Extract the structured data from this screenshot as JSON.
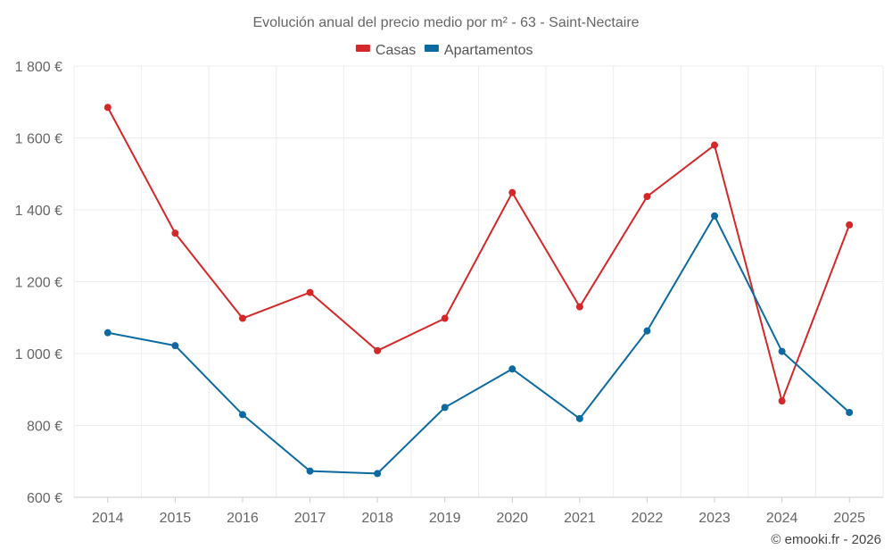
{
  "chart_data": {
    "type": "line",
    "title": "Evolución anual del precio medio por m² - 63 - Saint-Nectaire",
    "categories": [
      "2014",
      "2015",
      "2016",
      "2017",
      "2018",
      "2019",
      "2020",
      "2021",
      "2022",
      "2023",
      "2024",
      "2025"
    ],
    "series": [
      {
        "name": "Casas",
        "color": "#d62728",
        "values": [
          1685,
          1335,
          1098,
          1170,
          1008,
          1098,
          1448,
          1130,
          1437,
          1580,
          868,
          1358
        ]
      },
      {
        "name": "Apartamentos",
        "color": "#0b6a9f",
        "values": [
          1058,
          1022,
          830,
          673,
          666,
          850,
          957,
          819,
          1063,
          1383,
          1006,
          836
        ]
      }
    ],
    "ylim": [
      600,
      1800
    ],
    "yticks": [
      600,
      800,
      1000,
      1200,
      1400,
      1600,
      1800
    ],
    "ytick_labels": [
      "600 €",
      "800 €",
      "1 000 €",
      "1 200 €",
      "1 400 €",
      "1 600 €",
      "1 800 €"
    ],
    "xlabel": "",
    "ylabel": "",
    "grid": true,
    "legend_position": "top-center"
  },
  "credit": "© emooki.fr - 2026"
}
